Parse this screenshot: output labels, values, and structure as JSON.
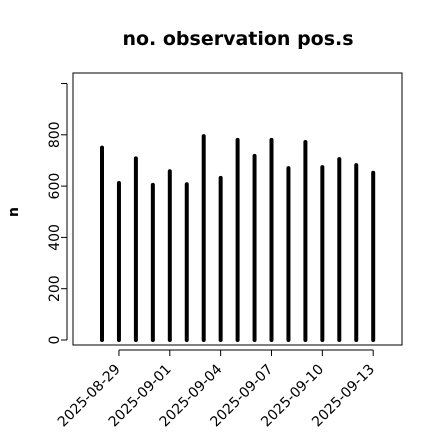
{
  "chart_data": {
    "type": "bar",
    "title": "no. observation pos.s",
    "xlabel": "",
    "ylabel": "n",
    "x": [
      "2025-08-28",
      "2025-08-29",
      "2025-08-30",
      "2025-08-31",
      "2025-09-01",
      "2025-09-02",
      "2025-09-03",
      "2025-09-04",
      "2025-09-05",
      "2025-09-06",
      "2025-09-07",
      "2025-09-08",
      "2025-09-09",
      "2025-09-10",
      "2025-09-11",
      "2025-09-12",
      "2025-09-13"
    ],
    "values": [
      750,
      612,
      708,
      605,
      658,
      607,
      795,
      632,
      780,
      718,
      780,
      670,
      772,
      674,
      705,
      682,
      652
    ],
    "xticks": [
      "2025-08-29",
      "2025-09-01",
      "2025-09-04",
      "2025-09-07",
      "2025-09-10",
      "2025-09-13"
    ],
    "yticks": [
      0,
      200,
      400,
      600,
      800
    ],
    "ylim": [
      0,
      1000
    ],
    "grid": false,
    "bar_color": "#000000",
    "highlight_tick": "2025-09-04",
    "highlight_color": "#228b22"
  }
}
